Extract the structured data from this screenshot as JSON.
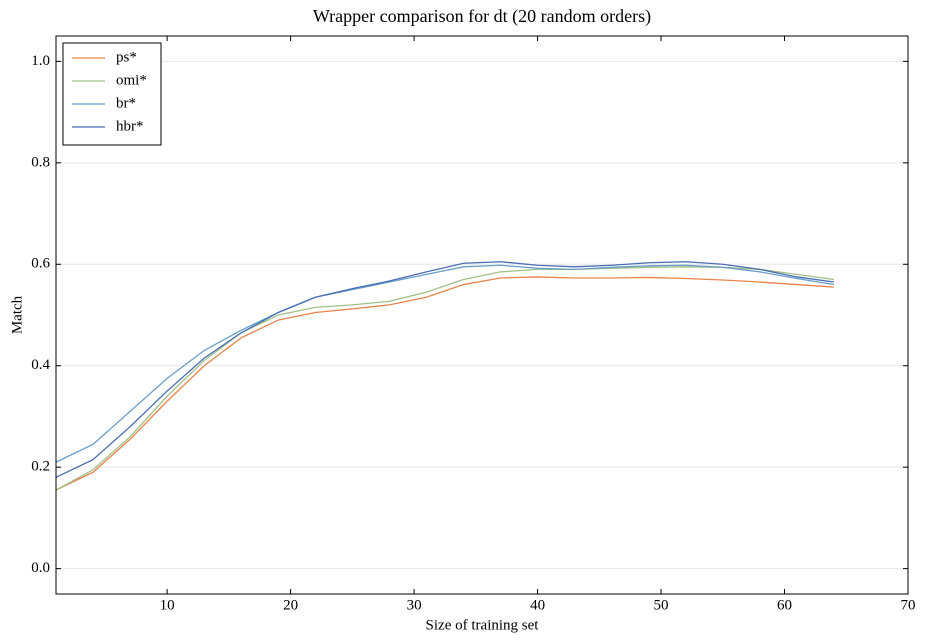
{
  "chart_data": {
    "type": "line",
    "title": "Wrapper comparison for dt (20 random orders)",
    "x_label": "Size of training set",
    "y_label": "Match",
    "x": [
      1,
      4,
      7,
      10,
      13,
      16,
      19,
      22,
      25,
      28,
      31,
      34,
      37,
      40,
      43,
      46,
      49,
      52,
      55,
      58,
      61,
      64
    ],
    "series": [
      {
        "name": "ps*",
        "color": "#e8834a",
        "values": [
          0.155,
          0.19,
          0.255,
          0.33,
          0.4,
          0.455,
          0.49,
          0.505,
          0.512,
          0.52,
          0.535,
          0.56,
          0.573,
          0.575,
          0.573,
          0.573,
          0.574,
          0.572,
          0.569,
          0.565,
          0.56,
          0.555
        ]
      },
      {
        "name": "omi*",
        "color": "#a3c08a",
        "values": [
          0.155,
          0.195,
          0.26,
          0.34,
          0.41,
          0.465,
          0.5,
          0.515,
          0.52,
          0.527,
          0.545,
          0.57,
          0.585,
          0.59,
          0.59,
          0.592,
          0.594,
          0.595,
          0.594,
          0.59,
          0.58,
          0.57
        ]
      },
      {
        "name": "br*",
        "color": "#6a9fc9",
        "values": [
          0.21,
          0.245,
          0.31,
          0.375,
          0.43,
          0.47,
          0.505,
          0.535,
          0.55,
          0.565,
          0.58,
          0.595,
          0.598,
          0.592,
          0.59,
          0.594,
          0.597,
          0.598,
          0.594,
          0.585,
          0.572,
          0.56
        ]
      },
      {
        "name": "hbr*",
        "color": "#4a6db3",
        "values": [
          0.18,
          0.215,
          0.28,
          0.35,
          0.415,
          0.465,
          0.505,
          0.535,
          0.552,
          0.567,
          0.585,
          0.602,
          0.605,
          0.598,
          0.595,
          0.598,
          0.603,
          0.605,
          0.6,
          0.59,
          0.575,
          0.565
        ]
      }
    ],
    "xlim": [
      1,
      70
    ],
    "xticks": [
      10,
      20,
      30,
      40,
      50,
      60,
      70
    ],
    "ylim": [
      -0.05,
      1.05
    ],
    "yticks": [
      {
        "value": 0,
        "label": "0.0"
      },
      0.2,
      0.4,
      0.6,
      0.8,
      {
        "value": 1,
        "label": "1.0"
      }
    ],
    "grid": true,
    "legend": "upper left"
  }
}
